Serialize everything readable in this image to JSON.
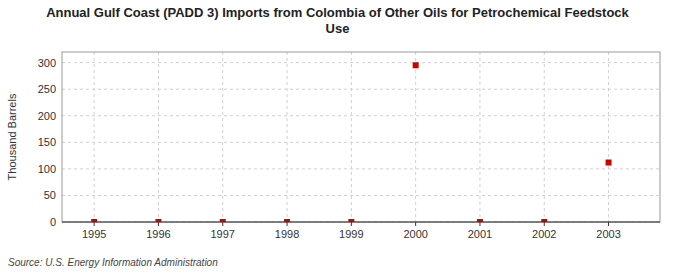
{
  "chart_data": {
    "type": "scatter",
    "title": "Annual Gulf Coast (PADD 3) Imports from Colombia of Other Oils for Petrochemical Feedstock\nUse",
    "ylabel": "Thousand Barrels",
    "source": "Source: U.S. Energy Information Administration",
    "x": [
      1995,
      1996,
      1997,
      1998,
      1999,
      2000,
      2001,
      2002,
      2003
    ],
    "values": [
      0,
      0,
      0,
      0,
      0,
      295,
      0,
      0,
      112
    ],
    "color": "#cc0000",
    "marker": "square",
    "xlim": [
      1994.5,
      2003.8
    ],
    "ylim": [
      0,
      320
    ],
    "xticks": [
      1995,
      1996,
      1997,
      1998,
      1999,
      2000,
      2001,
      2002,
      2003
    ],
    "yticks": [
      0,
      50,
      100,
      150,
      200,
      250,
      300
    ],
    "grid": true
  }
}
